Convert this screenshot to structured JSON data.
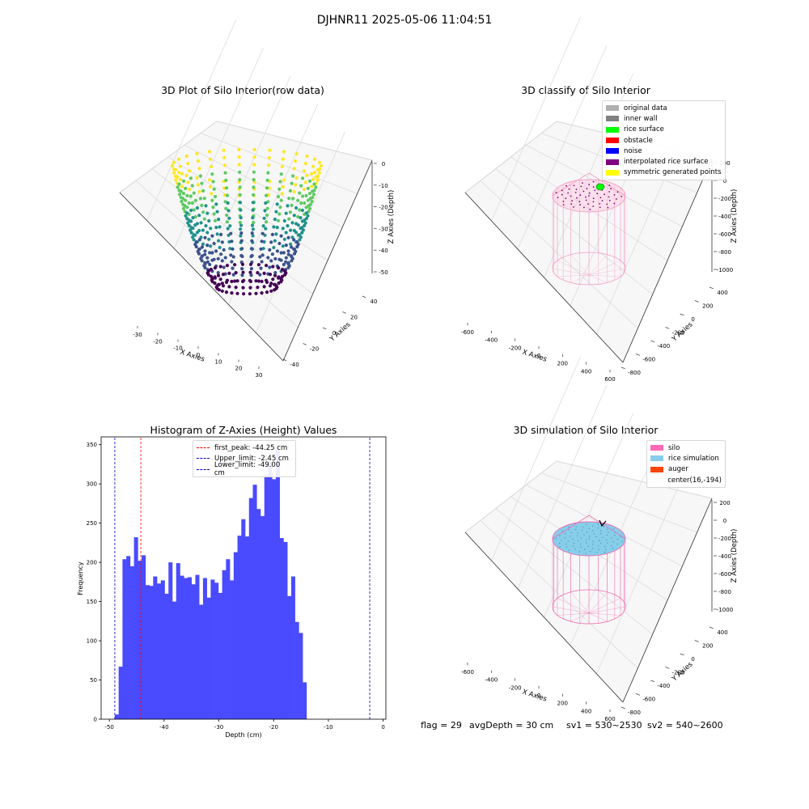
{
  "figure_title": "DJHNR11 2025-05-06 11:04:51",
  "footer": {
    "flag": "flag = 29",
    "avg_depth": "avgDepth = 30 cm",
    "sv1": "sv1 = 530~2530",
    "sv2": "sv2 = 540~2600"
  },
  "colors": {
    "hist_bar": "#4a4aff",
    "first_peak": "#ff0000",
    "limits": "#0000cc",
    "silo": "#ff69b4",
    "rice_simulation": "#87ceeb",
    "auger": "#ff4500",
    "viridis": [
      "#440154",
      "#3b528b",
      "#21918c",
      "#5ec962",
      "#fde725"
    ]
  },
  "chart_data": [
    {
      "type": "scatter",
      "projection": "3d",
      "title": "3D Plot of Silo Interior(row data)",
      "xlabel": "X Axies",
      "ylabel": "Y Axies",
      "zlabel": "Z Axies (Depth)",
      "xlim": [
        -35,
        35
      ],
      "ylim": [
        -45,
        50
      ],
      "zlim": [
        -55,
        0
      ],
      "xticks": [
        "-30",
        "-20",
        "-10",
        "0",
        "10",
        "20",
        "30"
      ],
      "yticks": [
        "-40",
        "-20",
        "0",
        "20",
        "40"
      ],
      "zticks": [
        "0",
        "-10",
        "-20",
        "-30",
        "-40",
        "-50"
      ],
      "colormap": "viridis",
      "grid": true
    },
    {
      "type": "scatter",
      "projection": "3d",
      "title": "3D classify of Silo Interior",
      "xlabel": "X Axies",
      "ylabel": "Y Axies",
      "zlabel": "Z Axies (Depth)",
      "xticks": [
        "-600",
        "-400",
        "-200",
        "0",
        "200",
        "400",
        "600"
      ],
      "yticks": [
        "-800",
        "-600",
        "-400",
        "-200",
        "0",
        "200",
        "400"
      ],
      "zticks": [
        "200",
        "0",
        "-200",
        "-400",
        "-600",
        "-800",
        "-1000"
      ],
      "legend_position": "top-right",
      "legend": [
        {
          "name": "original data",
          "color": "#b0b0b0"
        },
        {
          "name": "inner wall",
          "color": "#808080"
        },
        {
          "name": "rice surface",
          "color": "#00ff00"
        },
        {
          "name": "obstacle",
          "color": "#ff0000"
        },
        {
          "name": "noise",
          "color": "#0000ff"
        },
        {
          "name": "interpolated rice surface",
          "color": "#800080"
        },
        {
          "name": "symmetric generated points",
          "color": "#ffff00"
        }
      ],
      "grid": true
    },
    {
      "type": "bar",
      "title": "Histogram of Z-Axies (Height) Values",
      "xlabel": "Depth (cm)",
      "ylabel": "Frequency",
      "xlim": [
        -51.5,
        0.5
      ],
      "ylim": [
        0,
        360
      ],
      "xticks": [
        -50,
        -40,
        -30,
        -20,
        -10,
        0
      ],
      "yticks": [
        0,
        50,
        100,
        150,
        200,
        250,
        300,
        350
      ],
      "bin_start": -49.0,
      "bin_width": 0.7,
      "values": [
        6,
        67,
        204,
        208,
        195,
        232,
        202,
        209,
        171,
        170,
        182,
        173,
        177,
        160,
        200,
        150,
        199,
        183,
        180,
        181,
        172,
        184,
        146,
        180,
        155,
        178,
        174,
        161,
        190,
        204,
        177,
        213,
        234,
        255,
        233,
        282,
        299,
        268,
        259,
        311,
        328,
        306,
        343,
        231,
        226,
        157,
        182,
        124,
        110,
        47
      ],
      "lines": [
        {
          "name": "first_peak: -44.25 cm",
          "x": -44.25,
          "color": "#ff0000",
          "style": "dashed"
        },
        {
          "name": "Upper_limit: -2.45 cm",
          "x": -2.45,
          "color": "#0000cc",
          "style": "dashed"
        },
        {
          "name": "Lower_limit: -49.00 cm",
          "x": -49.0,
          "color": "#0000cc",
          "style": "dashed"
        }
      ],
      "legend_position": "top-center",
      "grid": false
    },
    {
      "type": "scatter",
      "projection": "3d",
      "title": "3D simulation of Silo Interior",
      "xlabel": "X Axies",
      "ylabel": "Y Axies",
      "zlabel": "Z Axies (Depth)",
      "xticks": [
        "-600",
        "-400",
        "-200",
        "0",
        "200",
        "400",
        "600"
      ],
      "yticks": [
        "-800",
        "-600",
        "-400",
        "-200",
        "0",
        "200",
        "400"
      ],
      "zticks": [
        "200",
        "0",
        "-200",
        "-400",
        "-600",
        "-800",
        "-1000"
      ],
      "legend_position": "top-right",
      "legend": [
        {
          "name": "silo",
          "color": "#ff69b4",
          "marker": "patch"
        },
        {
          "name": "rice simulation",
          "color": "#87ceeb",
          "marker": "patch"
        },
        {
          "name": "auger",
          "color": "#ff4500",
          "marker": "patch"
        },
        {
          "name": "center(16,-194)",
          "color": "",
          "marker": "none"
        }
      ],
      "grid": true
    }
  ]
}
